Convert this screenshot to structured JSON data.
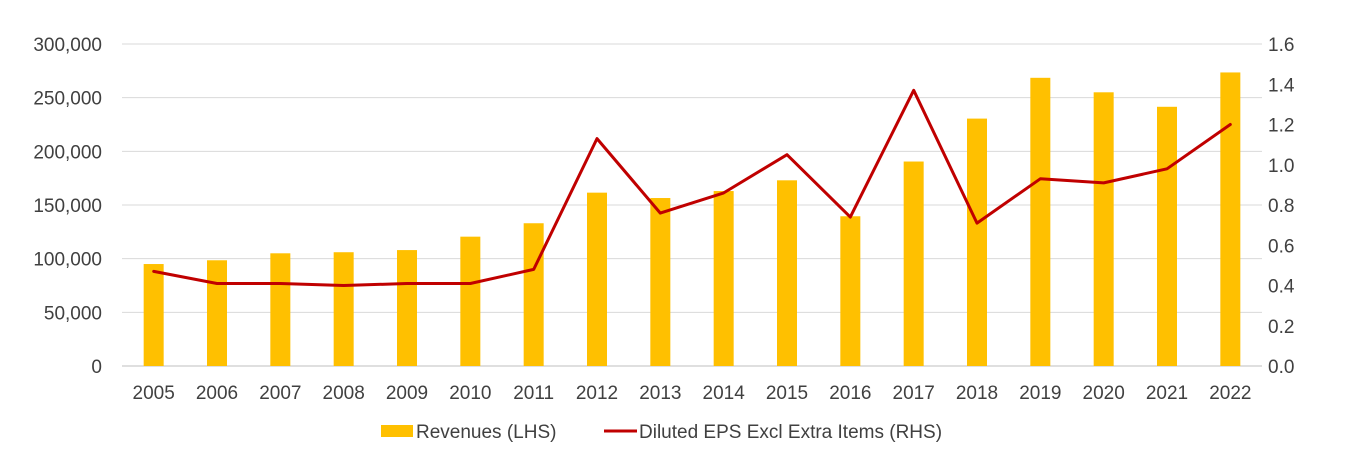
{
  "chart_data": {
    "type": "bar+line",
    "categories": [
      "2005",
      "2006",
      "2007",
      "2008",
      "2009",
      "2010",
      "2011",
      "2012",
      "2013",
      "2014",
      "2015",
      "2016",
      "2017",
      "2018",
      "2019",
      "2020",
      "2021",
      "2022"
    ],
    "series": [
      {
        "name": "Revenues (LHS)",
        "type": "bar",
        "axis": "left",
        "color": "#FFC000",
        "values": [
          95000,
          98500,
          105000,
          106000,
          108000,
          120500,
          133000,
          161500,
          156500,
          163000,
          173000,
          139500,
          190500,
          230500,
          268500,
          255000,
          241500,
          273500
        ]
      },
      {
        "name": "Diluted EPS Excl Extra Items (RHS)",
        "type": "line",
        "axis": "right",
        "color": "#C00000",
        "values": [
          0.47,
          0.41,
          0.41,
          0.4,
          0.41,
          0.41,
          0.48,
          1.13,
          0.76,
          0.86,
          1.05,
          0.74,
          1.37,
          0.71,
          0.93,
          0.91,
          0.98,
          1.2
        ]
      }
    ],
    "y_left": {
      "min": 0,
      "max": 300000,
      "ticks": [
        0,
        50000,
        100000,
        150000,
        200000,
        250000,
        300000
      ],
      "tick_labels": [
        "0",
        "50,000",
        "100,000",
        "150,000",
        "200,000",
        "250,000",
        "300,000"
      ]
    },
    "y_right": {
      "min": 0,
      "max": 1.6,
      "ticks": [
        0,
        0.2,
        0.4,
        0.6,
        0.8,
        1.0,
        1.2,
        1.4,
        1.6
      ],
      "tick_labels": [
        "0.0",
        "0.2",
        "0.4",
        "0.6",
        "0.8",
        "1.0",
        "1.2",
        "1.4",
        "1.6"
      ]
    },
    "grid": true,
    "legend_position": "bottom-center",
    "colors": {
      "grid": "#D9D9D9",
      "text": "#404040"
    }
  }
}
